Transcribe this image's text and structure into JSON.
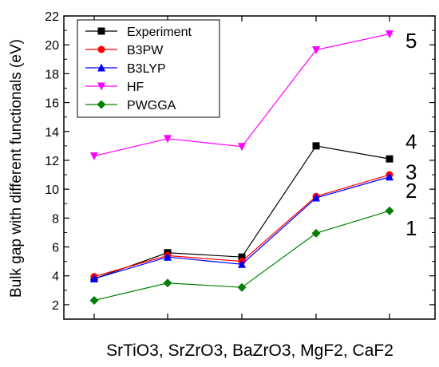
{
  "chart_data": {
    "type": "line",
    "title": "",
    "xlabel": "SrTiO3, SrZrO3, BaZrO3, MgF2, CaF2",
    "ylabel": "Bulk gap with different functionals (eV)",
    "categories": [
      "SrTiO3",
      "SrZrO3",
      "BaZrO3",
      "MgF2",
      "CaF2"
    ],
    "ylim": [
      1,
      22
    ],
    "yticks": [
      2,
      4,
      6,
      8,
      10,
      12,
      14,
      16,
      18,
      20,
      22
    ],
    "legend_position": "top-left",
    "series": [
      {
        "name": "Experiment",
        "color": "#000000",
        "marker": "square",
        "values": [
          3.8,
          5.6,
          5.3,
          13.0,
          12.1
        ]
      },
      {
        "name": "B3PW",
        "color": "#ff0000",
        "marker": "circle",
        "values": [
          3.95,
          5.4,
          5.0,
          9.5,
          11.0
        ]
      },
      {
        "name": "B3LYP",
        "color": "#0000ff",
        "marker": "triangle-up",
        "values": [
          3.8,
          5.3,
          4.8,
          9.4,
          10.85
        ]
      },
      {
        "name": "HF",
        "color": "#ff00ff",
        "marker": "triangle-down",
        "values": [
          12.3,
          13.5,
          12.95,
          19.65,
          20.75
        ]
      },
      {
        "name": "PWGGA",
        "color": "#008000",
        "marker": "diamond",
        "values": [
          2.3,
          3.5,
          3.2,
          6.95,
          8.5
        ]
      }
    ],
    "annotations": [
      {
        "text": "5",
        "category": "CaF2",
        "y": 19.8
      },
      {
        "text": "4",
        "category": "CaF2",
        "y": 12.8
      },
      {
        "text": "3",
        "category": "CaF2",
        "y": 10.7
      },
      {
        "text": "2",
        "category": "CaF2",
        "y": 9.4
      },
      {
        "text": "1",
        "category": "CaF2",
        "y": 6.8
      }
    ]
  }
}
